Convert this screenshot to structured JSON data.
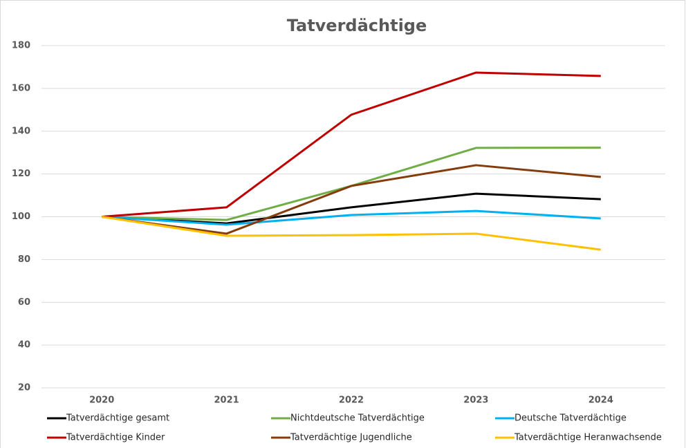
{
  "chart_data": {
    "type": "line",
    "title": "Tatverdächtige",
    "categories": [
      "2020",
      "2021",
      "2022",
      "2023",
      "2024"
    ],
    "series": [
      {
        "name": "Tatverdächtige gesamt",
        "color": "#000000",
        "values": [
          100,
          96.9,
          104.4,
          110.8,
          108.2
        ]
      },
      {
        "name": "Nichtdeutsche Tatverdächtige",
        "color": "#70ad47",
        "values": [
          100,
          98.5,
          114.4,
          132.2,
          132.3
        ]
      },
      {
        "name": "Deutsche Tatverdächtige",
        "color": "#00b0f0",
        "values": [
          100,
          96.3,
          100.8,
          102.7,
          99.2
        ]
      },
      {
        "name": "Tatverdächtige Kinder",
        "color": "#c00000",
        "values": [
          100,
          104.4,
          147.7,
          167.4,
          165.8
        ]
      },
      {
        "name": "Tatverdächtige Jugendliche",
        "color": "#843c0c",
        "values": [
          100,
          92.1,
          114.4,
          124.1,
          118.6
        ]
      },
      {
        "name": "Tatverdächtige Heranwachsende",
        "color": "#ffc000",
        "values": [
          100,
          91.1,
          91.4,
          92.1,
          84.6
        ]
      }
    ],
    "ylim": [
      20,
      180
    ],
    "yticks": [
      20,
      40,
      60,
      80,
      100,
      120,
      140,
      160,
      180
    ],
    "grid": true,
    "legend": "bottom"
  }
}
